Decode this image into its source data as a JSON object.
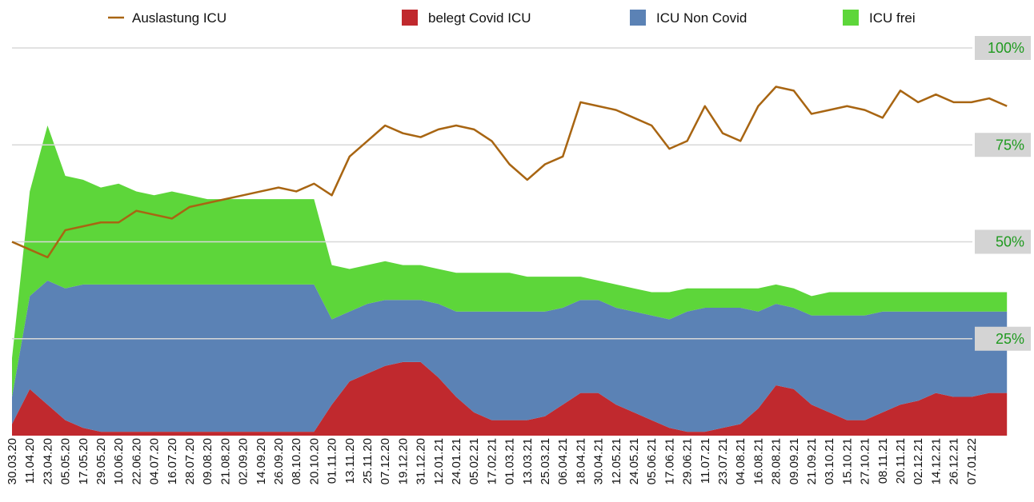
{
  "chart_data": {
    "type": "area",
    "categories": [
      "30.03.20",
      "11.04.20",
      "23.04.20",
      "05.05.20",
      "17.05.20",
      "29.05.20",
      "10.06.20",
      "22.06.20",
      "04.07.20",
      "16.07.20",
      "28.07.20",
      "09.08.20",
      "21.08.20",
      "02.09.20",
      "14.09.20",
      "26.09.20",
      "08.10.20",
      "20.10.20",
      "01.11.20",
      "13.11.20",
      "25.11.20",
      "07.12.20",
      "19.12.20",
      "31.12.20",
      "12.01.21",
      "24.01.21",
      "05.02.21",
      "17.02.21",
      "01.03.21",
      "13.03.21",
      "25.03.21",
      "06.04.21",
      "18.04.21",
      "30.04.21",
      "12.05.21",
      "24.05.21",
      "05.06.21",
      "17.06.21",
      "29.06.21",
      "11.07.21",
      "23.07.21",
      "04.08.21",
      "16.08.21",
      "28.08.21",
      "09.09.21",
      "21.09.21",
      "03.10.21",
      "15.10.21",
      "27.10.21",
      "08.11.21",
      "20.11.21",
      "02.12.21",
      "14.12.21",
      "26.12.21",
      "07.01.22",
      null,
      null
    ],
    "series": [
      {
        "name": "belegt Covid ICU",
        "type": "area",
        "color": "#c0292e",
        "values": [
          3,
          12,
          8,
          4,
          2,
          1,
          1,
          1,
          1,
          1,
          1,
          1,
          1,
          1,
          1,
          1,
          1,
          1,
          8,
          14,
          16,
          18,
          19,
          19,
          15,
          10,
          6,
          4,
          4,
          4,
          5,
          8,
          11,
          11,
          8,
          6,
          4,
          2,
          1,
          1,
          2,
          3,
          7,
          13,
          12,
          8,
          6,
          4,
          4,
          6,
          8,
          9,
          11,
          10,
          10,
          11,
          11
        ]
      },
      {
        "name": "ICU Non Covid",
        "type": "area",
        "color": "#5b82b5",
        "values": [
          7,
          24,
          32,
          34,
          37,
          38,
          38,
          38,
          38,
          38,
          38,
          38,
          38,
          38,
          38,
          38,
          38,
          38,
          22,
          18,
          18,
          17,
          16,
          16,
          19,
          22,
          26,
          28,
          28,
          28,
          27,
          25,
          24,
          24,
          25,
          26,
          27,
          28,
          31,
          32,
          31,
          30,
          25,
          21,
          21,
          23,
          25,
          27,
          27,
          26,
          24,
          23,
          21,
          22,
          22,
          21,
          21
        ]
      },
      {
        "name": "ICU frei",
        "type": "area",
        "color": "#5dd63a",
        "values": [
          10,
          27,
          40,
          29,
          27,
          25,
          26,
          24,
          23,
          24,
          23,
          22,
          22,
          22,
          22,
          22,
          22,
          22,
          14,
          11,
          10,
          10,
          9,
          9,
          9,
          10,
          10,
          10,
          10,
          9,
          9,
          8,
          6,
          5,
          6,
          6,
          6,
          7,
          6,
          5,
          5,
          5,
          6,
          5,
          5,
          5,
          6,
          6,
          6,
          5,
          5,
          5,
          5,
          5,
          5,
          5,
          5
        ]
      },
      {
        "name": "Auslastung ICU",
        "type": "line",
        "color": "#a86512",
        "values": [
          50,
          48,
          46,
          53,
          54,
          55,
          55,
          58,
          57,
          56,
          59,
          60,
          61,
          62,
          63,
          64,
          63,
          65,
          62,
          72,
          76,
          80,
          78,
          77,
          79,
          80,
          79,
          76,
          70,
          66,
          70,
          72,
          86,
          85,
          84,
          82,
          80,
          74,
          76,
          85,
          78,
          76,
          85,
          90,
          89,
          83,
          84,
          85,
          84,
          82,
          89,
          86,
          88,
          86,
          86,
          87,
          85
        ]
      }
    ],
    "ylim": [
      0,
      100
    ],
    "yticks": [
      {
        "value": 25,
        "label": "25%"
      },
      {
        "value": 50,
        "label": "50%"
      },
      {
        "value": 75,
        "label": "75%"
      },
      {
        "value": 100,
        "label": "100%"
      }
    ],
    "grid": true
  }
}
